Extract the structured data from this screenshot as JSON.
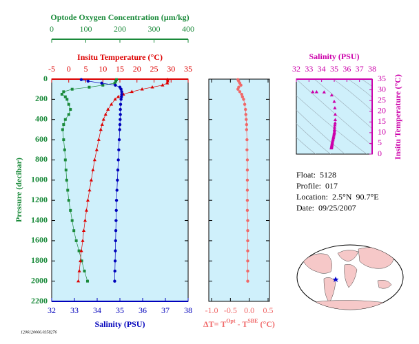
{
  "chart_data": [
    {
      "type": "profile",
      "ylabel": "Pressure (decibar)",
      "ylim": [
        0,
        2200
      ],
      "yticks": [
        0,
        200,
        400,
        600,
        800,
        1000,
        1200,
        1400,
        1600,
        1800,
        2000,
        2200
      ],
      "yinvert": true,
      "pressure": [
        5,
        20,
        40,
        60,
        80,
        100,
        125,
        150,
        175,
        200,
        250,
        300,
        350,
        400,
        450,
        500,
        600,
        700,
        800,
        900,
        1000,
        1100,
        1200,
        1300,
        1400,
        1500,
        1600,
        1700,
        1800,
        1900,
        2000
      ],
      "xaxes": [
        {
          "label": "Optode Oxygen Concentration (µm/kg)",
          "color": "#1a8a3a",
          "position": "top",
          "xlim": [
            0,
            400
          ],
          "xticks": [
            0,
            100,
            200,
            300,
            400
          ]
        },
        {
          "label": "Insitu Temperature (°C)",
          "color": "#dd0000",
          "position": "top",
          "xlim": [
            -5,
            35
          ],
          "xticks": [
            -5,
            0,
            5,
            10,
            15,
            20,
            25,
            30,
            35
          ]
        },
        {
          "label": "Salinity (PSU)",
          "color": "#0000bb",
          "position": "bottom",
          "xlim": [
            32,
            38
          ],
          "xticks": [
            32,
            33,
            34,
            35,
            36,
            37,
            38
          ]
        }
      ],
      "series": [
        {
          "axis": 0,
          "color": "#1a8a3a",
          "marker": "square",
          "values": [
            190,
            188,
            185,
            150,
            110,
            60,
            35,
            30,
            40,
            45,
            50,
            55,
            50,
            40,
            35,
            32,
            35,
            38,
            40,
            42,
            44,
            47,
            50,
            55,
            60,
            65,
            72,
            80,
            88,
            96,
            105
          ]
        },
        {
          "axis": 1,
          "color": "#dd0000",
          "marker": "triangle",
          "values": [
            29.0,
            29.0,
            28.9,
            27.5,
            24.5,
            21.5,
            18.5,
            16.0,
            14.5,
            13.6,
            12.5,
            11.5,
            10.8,
            10.2,
            9.8,
            9.4,
            8.8,
            8.2,
            7.6,
            7.1,
            6.6,
            6.1,
            5.6,
            5.2,
            4.8,
            4.4,
            4.1,
            3.7,
            3.4,
            3.1,
            2.8
          ]
        },
        {
          "axis": 2,
          "color": "#0000bb",
          "marker": "circle",
          "values": [
            33.3,
            33.6,
            34.2,
            34.8,
            35.0,
            35.05,
            35.08,
            35.08,
            35.07,
            35.05,
            35.03,
            35.02,
            35.02,
            35.01,
            35.0,
            34.99,
            34.97,
            34.95,
            34.93,
            34.91,
            34.89,
            34.87,
            34.85,
            34.84,
            34.83,
            34.82,
            34.81,
            34.8,
            34.79,
            34.78,
            34.77
          ]
        }
      ]
    },
    {
      "type": "scatter",
      "xlabel_parts": [
        "ΔT= T",
        "Opt",
        " - T",
        "SBE",
        " (°C)"
      ],
      "color": "#f06868",
      "xlim": [
        -1,
        0.5
      ],
      "xticks": [
        {
          "value": -1,
          "label": "-1.0"
        },
        -0.5,
        {
          "value": 0,
          "label": "0.0"
        },
        0.5
      ],
      "values": [
        -0.3,
        -0.28,
        -0.25,
        -0.22,
        -0.28,
        -0.3,
        -0.25,
        -0.2,
        -0.18,
        -0.15,
        -0.12,
        -0.1,
        -0.09,
        -0.08,
        -0.07,
        -0.07,
        -0.06,
        -0.06,
        -0.05,
        -0.05,
        -0.05,
        -0.05,
        -0.05,
        -0.05,
        -0.04,
        -0.04,
        -0.04,
        -0.04,
        -0.04,
        -0.04,
        -0.04
      ]
    },
    {
      "type": "ts",
      "xlabel": "Salinity (PSU)",
      "ylabel": "Insitu Temperature (°C)",
      "color": "#cc00aa",
      "xlim": [
        32,
        38
      ],
      "xticks": [
        32,
        33,
        34,
        35,
        36,
        37,
        38
      ],
      "ylim": [
        0,
        35
      ],
      "yticks": [
        0,
        5,
        10,
        15,
        20,
        25,
        30,
        35
      ]
    }
  ],
  "info": [
    "Float:  5128",
    "Profile:  017",
    "Location:  2.5°N  90.7°E",
    "Date:  09/25/2007"
  ],
  "plot_id": "1206120066.0358276"
}
